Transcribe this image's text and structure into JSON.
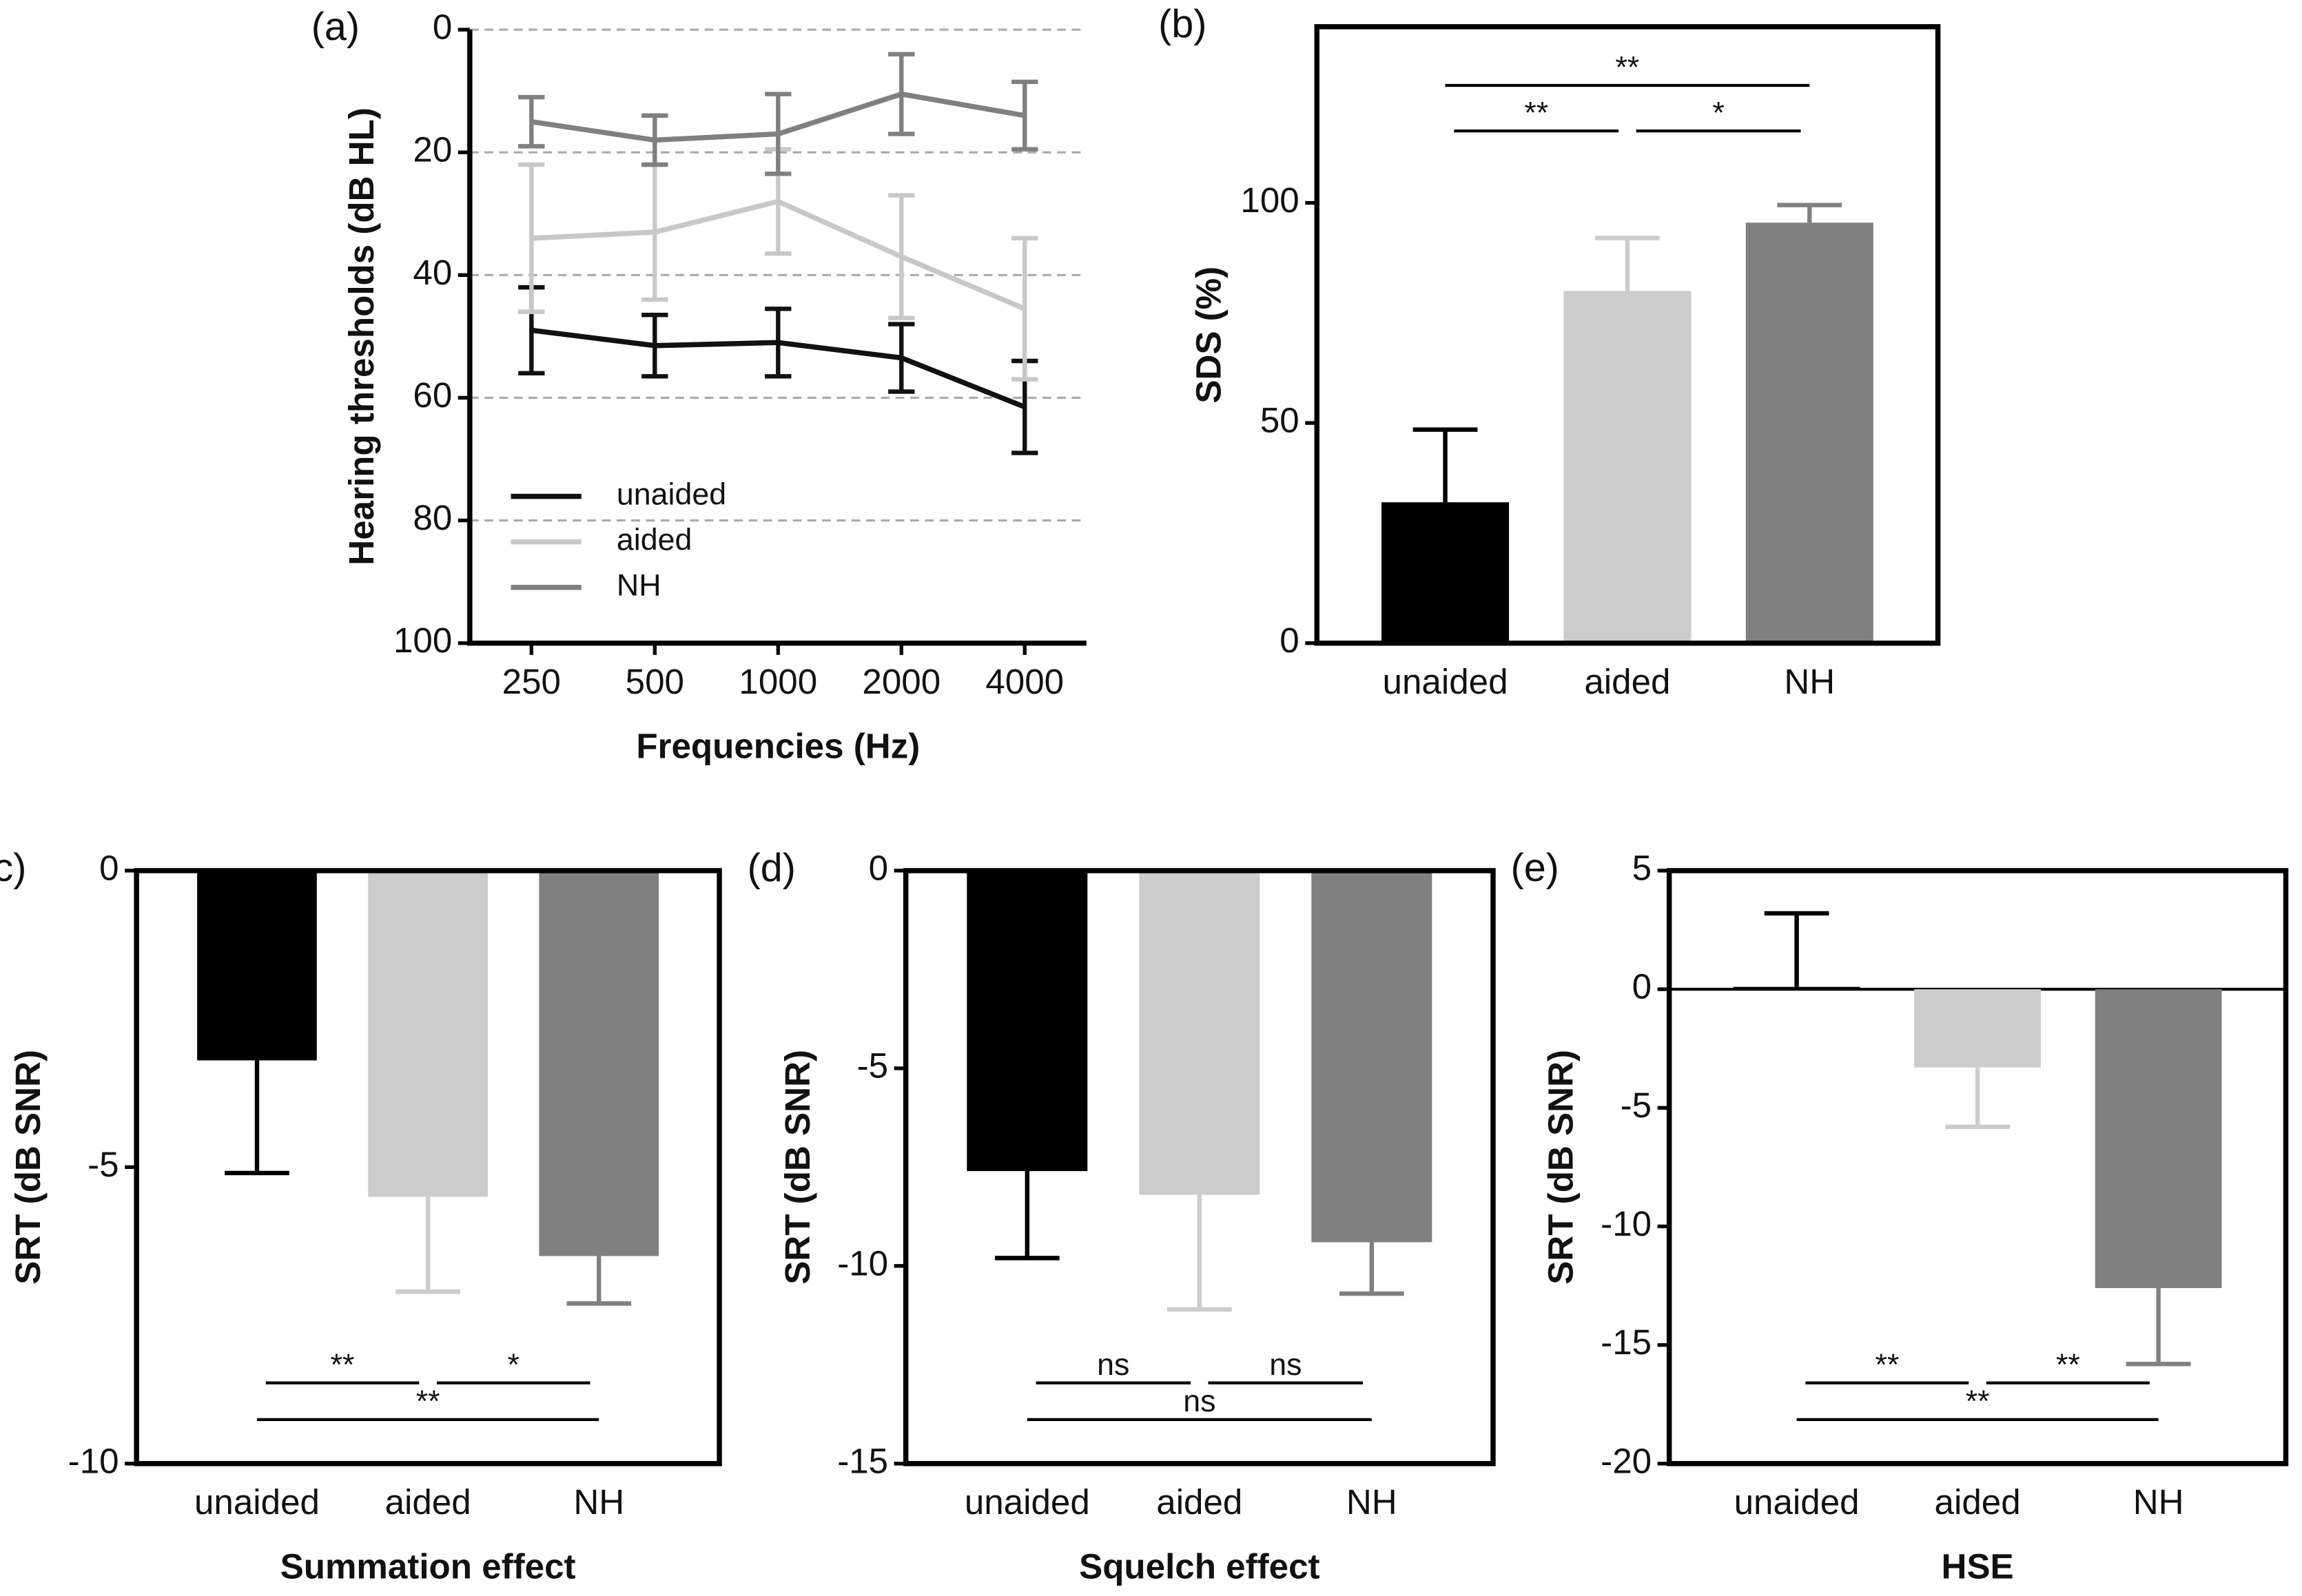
{
  "chart_data": [
    {
      "type": "line",
      "label": "(a)",
      "x_label": "Frequencies (Hz)",
      "y_label": "Hearing thresholds (dB HL)",
      "categories": [
        "250",
        "500",
        "1000",
        "2000",
        "4000"
      ],
      "ylim": [
        100,
        0
      ],
      "yticks": [
        0,
        20,
        40,
        60,
        80,
        100
      ],
      "grid": true,
      "frame": "axes",
      "legend": "lower left",
      "series": [
        {
          "name": "unaided",
          "color": "#111111",
          "values": [
            49,
            51.5,
            51,
            53.5,
            61.5
          ],
          "errors": [
            7,
            5,
            5.5,
            5.5,
            7.5
          ]
        },
        {
          "name": "aided",
          "color": "#c8c8c8",
          "values": [
            34,
            33,
            28,
            37,
            45.5
          ],
          "errors": [
            12,
            11,
            8.5,
            10,
            11.5
          ]
        },
        {
          "name": "NH",
          "color": "#808080",
          "values": [
            15,
            18,
            17,
            10.5,
            14
          ],
          "errors": [
            4,
            4,
            6.5,
            6.5,
            5.5
          ]
        }
      ]
    },
    {
      "type": "bar",
      "label": "(b)",
      "y_label": "SDS (%)",
      "categories": [
        "unaided",
        "aided",
        "NH"
      ],
      "values": [
        32,
        80,
        95.5
      ],
      "errors": [
        16.5,
        12,
        4
      ],
      "colors": [
        "#000000",
        "#cccccc",
        "#808080"
      ],
      "ylim": [
        0,
        140
      ],
      "yticks": [
        0,
        50,
        100
      ],
      "frame": "box",
      "comparisons_position": "top",
      "comparisons": [
        {
          "label": "**",
          "between": [
            "unaided",
            "aided"
          ]
        },
        {
          "label": "*",
          "between": [
            "aided",
            "NH"
          ]
        },
        {
          "label": "**",
          "between": [
            "unaided",
            "NH"
          ]
        }
      ]
    },
    {
      "type": "bar",
      "label": "(c)",
      "y_label": "SRT (dB SNR)",
      "x_label": "Summation effect",
      "categories": [
        "unaided",
        "aided",
        "NH"
      ],
      "values": [
        -3.2,
        -5.5,
        -6.5
      ],
      "errors": [
        1.9,
        1.6,
        0.8
      ],
      "colors": [
        "#000000",
        "#cccccc",
        "#808080"
      ],
      "ylim": [
        -10,
        0
      ],
      "yticks": [
        0,
        -5,
        -10
      ],
      "frame": "box",
      "comparisons_position": "bottom",
      "comparisons": [
        {
          "label": "**",
          "between": [
            "unaided",
            "aided"
          ]
        },
        {
          "label": "*",
          "between": [
            "aided",
            "NH"
          ]
        },
        {
          "label": "**",
          "between": [
            "unaided",
            "NH"
          ]
        }
      ]
    },
    {
      "type": "bar",
      "label": "(d)",
      "y_label": "SRT (dB SNR)",
      "x_label": "Squelch effect",
      "categories": [
        "unaided",
        "aided",
        "NH"
      ],
      "values": [
        -7.6,
        -8.2,
        -9.4
      ],
      "errors": [
        2.2,
        2.9,
        1.3
      ],
      "colors": [
        "#000000",
        "#cccccc",
        "#808080"
      ],
      "ylim": [
        -15,
        0
      ],
      "yticks": [
        0,
        -5,
        -10,
        -15
      ],
      "frame": "box",
      "comparisons_position": "bottom",
      "comparisons": [
        {
          "label": "ns",
          "between": [
            "unaided",
            "aided"
          ]
        },
        {
          "label": "ns",
          "between": [
            "aided",
            "NH"
          ]
        },
        {
          "label": "ns",
          "between": [
            "unaided",
            "NH"
          ]
        }
      ]
    },
    {
      "type": "bar",
      "label": "(e)",
      "y_label": "SRT (dB SNR)",
      "x_label": "HSE",
      "categories": [
        "unaided",
        "aided",
        "NH"
      ],
      "values": [
        0.1,
        -3.3,
        -12.6
      ],
      "errors": [
        3.1,
        2.5,
        3.2
      ],
      "colors": [
        "#000000",
        "#cccccc",
        "#808080"
      ],
      "ylim": [
        -20,
        5
      ],
      "yticks": [
        5,
        0,
        -5,
        -10,
        -15,
        -20
      ],
      "frame": "box",
      "comparisons_position": "bottom",
      "comparisons": [
        {
          "label": "**",
          "between": [
            "unaided",
            "aided"
          ]
        },
        {
          "label": "**",
          "between": [
            "aided",
            "NH"
          ]
        },
        {
          "label": "**",
          "between": [
            "unaided",
            "NH"
          ]
        }
      ]
    }
  ]
}
